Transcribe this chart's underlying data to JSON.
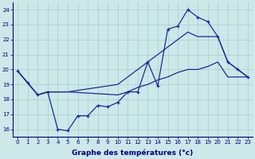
{
  "xlabel": "Graphe des températures (°c)",
  "bg_color": "#cce8e8",
  "grid_color": "#aacccc",
  "line_color": "#1a2a9a",
  "ylim": [
    15.5,
    24.5
  ],
  "xlim": [
    -0.5,
    23.5
  ],
  "yticks": [
    16,
    17,
    18,
    19,
    20,
    21,
    22,
    23,
    24
  ],
  "xticks": [
    0,
    1,
    2,
    3,
    4,
    5,
    6,
    7,
    8,
    9,
    10,
    11,
    12,
    13,
    14,
    15,
    16,
    17,
    18,
    19,
    20,
    21,
    22,
    23
  ],
  "series1_x": [
    0,
    1,
    2,
    3,
    4,
    5,
    6,
    7,
    8,
    9,
    10,
    11,
    12,
    13,
    14,
    15,
    16,
    17,
    18,
    19,
    20,
    21,
    22,
    23
  ],
  "series1_y": [
    19.9,
    19.1,
    18.3,
    18.5,
    16.0,
    15.9,
    16.9,
    16.9,
    17.6,
    17.5,
    17.8,
    18.5,
    18.5,
    20.5,
    18.9,
    22.7,
    22.9,
    24.0,
    23.5,
    23.2,
    22.2,
    20.5,
    20.0,
    19.5
  ],
  "series2_x": [
    0,
    1,
    2,
    3,
    4,
    5,
    10,
    11,
    12,
    13,
    14,
    15,
    16,
    17,
    18,
    19,
    20,
    21,
    22,
    23
  ],
  "series2_y": [
    19.9,
    19.1,
    18.3,
    18.5,
    18.5,
    18.5,
    19.0,
    19.5,
    20.0,
    20.5,
    21.0,
    21.5,
    22.0,
    22.5,
    22.2,
    22.2,
    22.2,
    20.5,
    20.0,
    19.5
  ],
  "series3_x": [
    0,
    1,
    2,
    3,
    4,
    5,
    10,
    11,
    12,
    13,
    14,
    15,
    16,
    17,
    18,
    19,
    20,
    21,
    22,
    23
  ],
  "series3_y": [
    19.9,
    19.1,
    18.3,
    18.5,
    18.5,
    18.5,
    18.3,
    18.5,
    18.8,
    19.0,
    19.3,
    19.5,
    19.8,
    20.0,
    20.0,
    20.2,
    20.5,
    19.5,
    19.5,
    19.5
  ]
}
